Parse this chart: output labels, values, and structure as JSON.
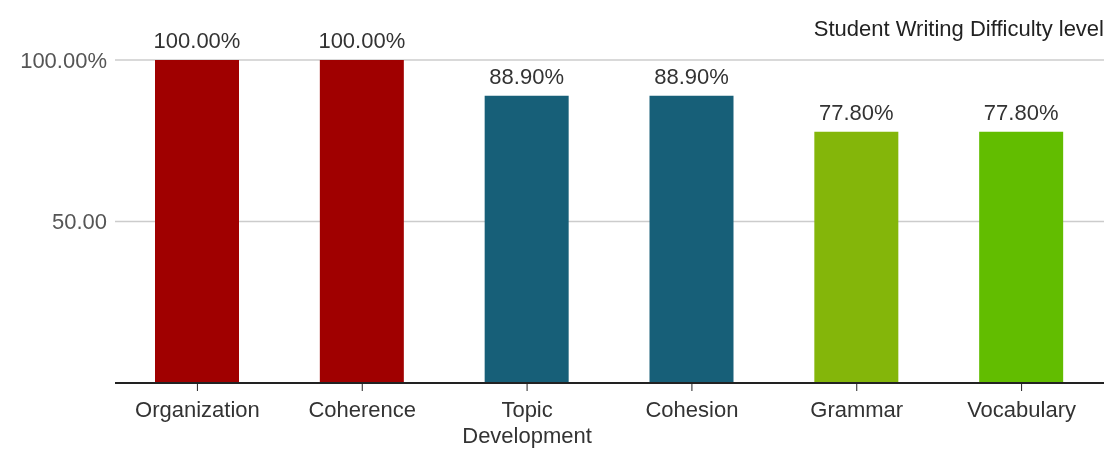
{
  "chart_data": {
    "type": "bar",
    "title": "Student Writing Difficulty level",
    "categories": [
      "Organization",
      "Coherence",
      "Topic Development",
      "Cohesion",
      "Grammar",
      "Vocabulary"
    ],
    "values": [
      100,
      100,
      88.9,
      88.9,
      77.8,
      77.8
    ],
    "colors": [
      "#a00000",
      "#a00000",
      "#175f78",
      "#175f78",
      "#84b60a",
      "#62bd00"
    ],
    "value_labels": [
      "100.00%",
      "100.00%",
      "88.90%",
      "88.90%",
      "77.80%",
      "77.80%"
    ],
    "ylim": [
      0,
      100
    ],
    "yticks": [
      {
        "value": 100,
        "label": "100.00%"
      },
      {
        "value": 50,
        "label": "50.00"
      }
    ],
    "grid": "y"
  }
}
